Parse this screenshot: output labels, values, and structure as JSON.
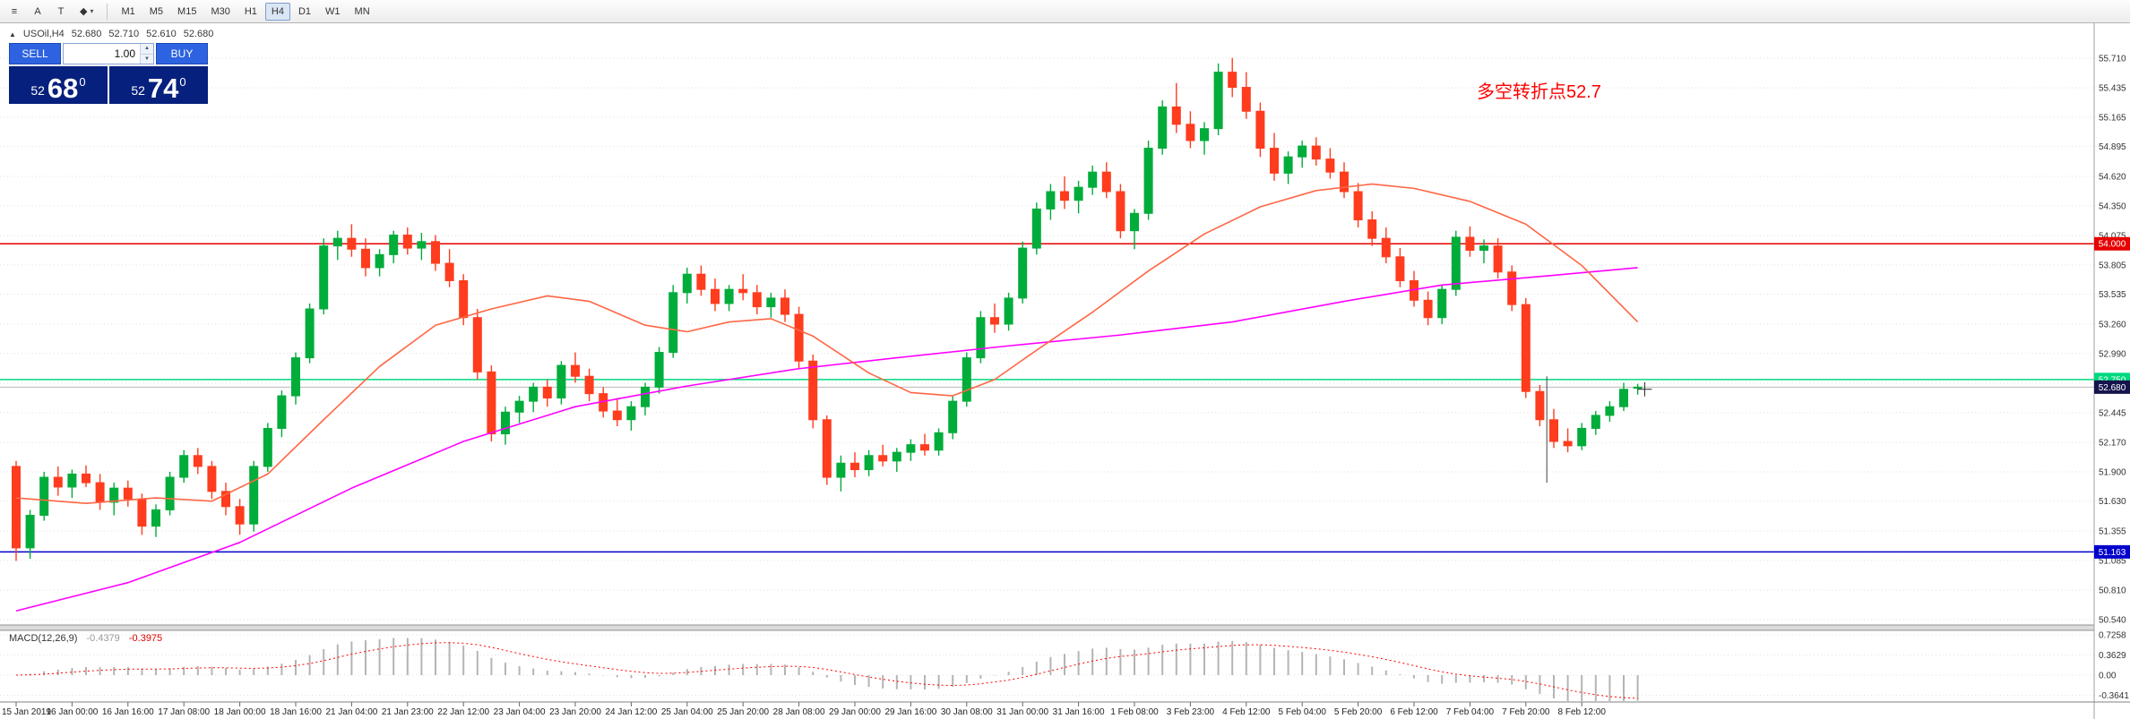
{
  "toolbar": {
    "tools": [
      {
        "name": "menu",
        "glyph": "≡"
      },
      {
        "name": "cursor",
        "glyph": "A"
      },
      {
        "name": "text",
        "glyph": "T"
      },
      {
        "name": "shapes",
        "glyph": "◆"
      },
      {
        "name": "shapes-caret",
        "glyph": "▾"
      }
    ],
    "timeframes": [
      "M1",
      "M5",
      "M15",
      "M30",
      "H1",
      "H4",
      "D1",
      "W1",
      "MN"
    ],
    "active_timeframe": "H4"
  },
  "chart_header": {
    "symbol_icon": "▲",
    "symbol": "USOil,H4",
    "open": "52.680",
    "high": "52.710",
    "low": "52.610",
    "close": "52.680"
  },
  "trade_panel": {
    "sell_label": "SELL",
    "buy_label": "BUY",
    "volume": "1.00",
    "spinner_up": "▲",
    "spinner_down": "▼",
    "sell_big": "52",
    "sell_pips": "68",
    "sell_sup": "0",
    "buy_big": "52",
    "buy_pips": "74",
    "buy_sup": "0"
  },
  "annotation": {
    "text": "多空转折点52.7"
  },
  "indicator_label": {
    "name": "MACD(12,26,9)",
    "main_value": "-0.4379",
    "signal_value": "-0.3975"
  },
  "colors": {
    "bull": "#00ac3a",
    "bear": "#ff3c1e",
    "grid": "#e0e0e0",
    "axis_text": "#333333",
    "current_price_label_bg": "#15154d",
    "buy_sell_button": "#2d63e0",
    "price_box_bg": "#06207d",
    "annotation_red": "#ff0000"
  },
  "chart_data": {
    "type": "candlestick",
    "title": "USOil H4 candlestick chart with MACD(12,26,9) subwindow",
    "y_axis_labels": [
      "55.710",
      "55.435",
      "55.165",
      "54.895",
      "54.620",
      "54.350",
      "54.075",
      "53.805",
      "53.535",
      "53.260",
      "52.990",
      "52.715",
      "52.445",
      "52.170",
      "51.900",
      "51.630",
      "51.355",
      "51.085",
      "50.810",
      "50.540"
    ],
    "x_axis_labels": [
      "15 Jan 2019",
      "16 Jan 00:00",
      "16 Jan 16:00",
      "17 Jan 08:00",
      "18 Jan 00:00",
      "18 Jan 16:00",
      "21 Jan 04:00",
      "21 Jan 23:00",
      "22 Jan 12:00",
      "23 Jan 04:00",
      "23 Jan 20:00",
      "24 Jan 12:00",
      "25 Jan 04:00",
      "25 Jan 20:00",
      "28 Jan 08:00",
      "29 Jan 00:00",
      "29 Jan 16:00",
      "30 Jan 08:00",
      "31 Jan 00:00",
      "31 Jan 16:00",
      "1 Feb 08:00",
      "3 Feb 23:00",
      "4 Feb 12:00",
      "5 Feb 04:00",
      "5 Feb 20:00",
      "6 Feb 12:00",
      "7 Feb 04:00",
      "7 Feb 20:00",
      "8 Feb 12:00"
    ],
    "bars_per_x_label": 4,
    "ylim_pane": [
      50.49,
      56.03
    ],
    "candles": [
      [
        51.95,
        52.0,
        51.08,
        51.2
      ],
      [
        51.2,
        51.55,
        51.1,
        51.5
      ],
      [
        51.5,
        51.9,
        51.45,
        51.85
      ],
      [
        51.85,
        51.95,
        51.68,
        51.76
      ],
      [
        51.76,
        51.92,
        51.66,
        51.88
      ],
      [
        51.88,
        51.96,
        51.76,
        51.8
      ],
      [
        51.8,
        51.88,
        51.55,
        51.62
      ],
      [
        51.62,
        51.8,
        51.5,
        51.75
      ],
      [
        51.75,
        51.82,
        51.58,
        51.65
      ],
      [
        51.65,
        51.7,
        51.32,
        51.4
      ],
      [
        51.4,
        51.6,
        51.3,
        51.55
      ],
      [
        51.55,
        51.9,
        51.5,
        51.85
      ],
      [
        51.85,
        52.1,
        51.8,
        52.05
      ],
      [
        52.05,
        52.12,
        51.88,
        51.95
      ],
      [
        51.95,
        52.0,
        51.65,
        51.72
      ],
      [
        51.72,
        51.8,
        51.5,
        51.58
      ],
      [
        51.58,
        51.65,
        51.32,
        51.42
      ],
      [
        51.42,
        52.0,
        51.35,
        51.95
      ],
      [
        51.95,
        52.35,
        51.9,
        52.3
      ],
      [
        52.3,
        52.65,
        52.22,
        52.6
      ],
      [
        52.6,
        53.0,
        52.52,
        52.95
      ],
      [
        52.95,
        53.45,
        52.9,
        53.4
      ],
      [
        53.4,
        54.05,
        53.35,
        53.98
      ],
      [
        53.98,
        54.12,
        53.85,
        54.05
      ],
      [
        54.05,
        54.18,
        53.88,
        53.95
      ],
      [
        53.95,
        54.05,
        53.7,
        53.78
      ],
      [
        53.78,
        53.95,
        53.7,
        53.9
      ],
      [
        53.9,
        54.12,
        53.82,
        54.08
      ],
      [
        54.08,
        54.15,
        53.9,
        53.96
      ],
      [
        53.96,
        54.1,
        53.85,
        54.02
      ],
      [
        54.02,
        54.08,
        53.75,
        53.82
      ],
      [
        53.82,
        53.95,
        53.6,
        53.66
      ],
      [
        53.66,
        53.72,
        53.25,
        53.32
      ],
      [
        53.32,
        53.4,
        52.75,
        52.82
      ],
      [
        52.82,
        52.88,
        52.18,
        52.25
      ],
      [
        52.25,
        52.5,
        52.15,
        52.45
      ],
      [
        52.45,
        52.6,
        52.35,
        52.55
      ],
      [
        52.55,
        52.72,
        52.45,
        52.68
      ],
      [
        52.68,
        52.75,
        52.5,
        52.58
      ],
      [
        52.58,
        52.92,
        52.52,
        52.88
      ],
      [
        52.88,
        53.0,
        52.72,
        52.78
      ],
      [
        52.78,
        52.85,
        52.55,
        52.62
      ],
      [
        52.62,
        52.68,
        52.4,
        52.46
      ],
      [
        52.46,
        52.58,
        52.32,
        52.38
      ],
      [
        52.38,
        52.55,
        52.28,
        52.5
      ],
      [
        52.5,
        52.72,
        52.42,
        52.68
      ],
      [
        52.68,
        53.05,
        52.62,
        53.0
      ],
      [
        53.0,
        53.62,
        52.95,
        53.55
      ],
      [
        53.55,
        53.78,
        53.45,
        53.72
      ],
      [
        53.72,
        53.8,
        53.52,
        53.58
      ],
      [
        53.58,
        53.68,
        53.38,
        53.45
      ],
      [
        53.45,
        53.62,
        53.38,
        53.58
      ],
      [
        53.58,
        53.72,
        53.48,
        53.55
      ],
      [
        53.55,
        53.62,
        53.35,
        53.42
      ],
      [
        53.42,
        53.55,
        53.32,
        53.5
      ],
      [
        53.5,
        53.58,
        53.28,
        53.35
      ],
      [
        53.35,
        53.42,
        52.85,
        52.92
      ],
      [
        52.92,
        52.98,
        52.3,
        52.38
      ],
      [
        52.38,
        52.42,
        51.78,
        51.85
      ],
      [
        51.85,
        52.05,
        51.72,
        51.98
      ],
      [
        51.98,
        52.08,
        51.85,
        51.92
      ],
      [
        51.92,
        52.1,
        51.86,
        52.05
      ],
      [
        52.05,
        52.15,
        51.95,
        52.0
      ],
      [
        52.0,
        52.12,
        51.9,
        52.08
      ],
      [
        52.08,
        52.2,
        52.0,
        52.15
      ],
      [
        52.15,
        52.25,
        52.05,
        52.1
      ],
      [
        52.1,
        52.3,
        52.05,
        52.26
      ],
      [
        52.26,
        52.6,
        52.2,
        52.55
      ],
      [
        52.55,
        53.0,
        52.5,
        52.95
      ],
      [
        52.95,
        53.38,
        52.9,
        53.32
      ],
      [
        53.32,
        53.45,
        53.18,
        53.26
      ],
      [
        53.26,
        53.55,
        53.2,
        53.5
      ],
      [
        53.5,
        54.02,
        53.45,
        53.96
      ],
      [
        53.96,
        54.38,
        53.9,
        54.32
      ],
      [
        54.32,
        54.55,
        54.22,
        54.48
      ],
      [
        54.48,
        54.62,
        54.32,
        54.4
      ],
      [
        54.4,
        54.58,
        54.28,
        54.52
      ],
      [
        54.52,
        54.72,
        54.45,
        54.66
      ],
      [
        54.66,
        54.75,
        54.42,
        54.48
      ],
      [
        54.48,
        54.55,
        54.05,
        54.12
      ],
      [
        54.12,
        54.32,
        53.95,
        54.28
      ],
      [
        54.28,
        54.95,
        54.22,
        54.88
      ],
      [
        54.88,
        55.32,
        54.82,
        55.26
      ],
      [
        55.26,
        55.48,
        55.02,
        55.1
      ],
      [
        55.1,
        55.22,
        54.88,
        54.95
      ],
      [
        54.95,
        55.12,
        54.82,
        55.06
      ],
      [
        55.06,
        55.66,
        55.0,
        55.58
      ],
      [
        55.58,
        55.71,
        55.35,
        55.44
      ],
      [
        55.44,
        55.58,
        55.15,
        55.22
      ],
      [
        55.22,
        55.3,
        54.8,
        54.88
      ],
      [
        54.88,
        55.02,
        54.58,
        54.65
      ],
      [
        54.65,
        54.85,
        54.55,
        54.8
      ],
      [
        54.8,
        54.95,
        54.7,
        54.9
      ],
      [
        54.9,
        54.98,
        54.72,
        54.78
      ],
      [
        54.78,
        54.88,
        54.6,
        54.66
      ],
      [
        54.66,
        54.75,
        54.42,
        54.48
      ],
      [
        54.48,
        54.56,
        54.15,
        54.22
      ],
      [
        54.22,
        54.3,
        53.98,
        54.05
      ],
      [
        54.05,
        54.15,
        53.82,
        53.88
      ],
      [
        53.88,
        53.96,
        53.6,
        53.66
      ],
      [
        53.66,
        53.75,
        53.42,
        53.48
      ],
      [
        53.48,
        53.56,
        53.25,
        53.32
      ],
      [
        53.32,
        53.62,
        53.26,
        53.58
      ],
      [
        53.58,
        54.12,
        53.52,
        54.06
      ],
      [
        54.06,
        54.16,
        53.88,
        53.94
      ],
      [
        53.94,
        54.04,
        53.82,
        53.98
      ],
      [
        53.98,
        54.05,
        53.68,
        53.74
      ],
      [
        53.74,
        53.8,
        53.38,
        53.44
      ],
      [
        53.44,
        53.5,
        52.58,
        52.64
      ],
      [
        52.64,
        52.7,
        52.32,
        52.38
      ],
      [
        52.38,
        52.48,
        52.12,
        52.18
      ],
      [
        52.18,
        52.3,
        52.08,
        52.14
      ],
      [
        52.14,
        52.35,
        52.1,
        52.3
      ],
      [
        52.3,
        52.46,
        52.24,
        52.42
      ],
      [
        52.42,
        52.55,
        52.36,
        52.5
      ],
      [
        52.5,
        52.72,
        52.46,
        52.66
      ],
      [
        52.68,
        52.71,
        52.61,
        52.68
      ]
    ],
    "horizontal_lines": [
      {
        "price": 54.0,
        "color": "#e60000",
        "label": "54.000"
      },
      {
        "price": 52.75,
        "color": "#00d97e",
        "label": "52.750"
      },
      {
        "price": 51.163,
        "color": "#0000cc",
        "label": "51.163"
      }
    ],
    "current_price": {
      "value": 52.68,
      "label": "52.680"
    },
    "ma_fast": {
      "name": "fast moving average",
      "color": "#ff6644",
      "points": [
        [
          0,
          51.66
        ],
        [
          5,
          51.61
        ],
        [
          10,
          51.66
        ],
        [
          14,
          51.63
        ],
        [
          18,
          51.88
        ],
        [
          22,
          52.38
        ],
        [
          26,
          52.87
        ],
        [
          30,
          53.25
        ],
        [
          34,
          53.4
        ],
        [
          38,
          53.52
        ],
        [
          41,
          53.47
        ],
        [
          45,
          53.25
        ],
        [
          48,
          53.19
        ],
        [
          51,
          53.28
        ],
        [
          54,
          53.31
        ],
        [
          57,
          53.15
        ],
        [
          61,
          52.81
        ],
        [
          64,
          52.63
        ],
        [
          67,
          52.6
        ],
        [
          70,
          52.75
        ],
        [
          73,
          53.02
        ],
        [
          77,
          53.37
        ],
        [
          81,
          53.75
        ],
        [
          85,
          54.09
        ],
        [
          89,
          54.34
        ],
        [
          93,
          54.49
        ],
        [
          97,
          54.55
        ],
        [
          100,
          54.51
        ],
        [
          104,
          54.39
        ],
        [
          108,
          54.18
        ],
        [
          112,
          53.8
        ],
        [
          116,
          53.28
        ]
      ]
    },
    "ma_slow": {
      "name": "slow moving average",
      "color": "#ff00ff",
      "points": [
        [
          0,
          50.62
        ],
        [
          8,
          50.88
        ],
        [
          16,
          51.25
        ],
        [
          24,
          51.75
        ],
        [
          32,
          52.18
        ],
        [
          40,
          52.5
        ],
        [
          48,
          52.69
        ],
        [
          56,
          52.85
        ],
        [
          63,
          52.95
        ],
        [
          71,
          53.06
        ],
        [
          79,
          53.16
        ],
        [
          87,
          53.28
        ],
        [
          95,
          53.47
        ],
        [
          102,
          53.62
        ],
        [
          110,
          53.71
        ],
        [
          116,
          53.78
        ]
      ]
    },
    "macd": {
      "fast": 12,
      "slow": 26,
      "signal": 9,
      "histogram_color": "#b4b4b4",
      "signal_color": "#ff0000",
      "axis_labels": [
        "0.7258",
        "0.3629",
        "0.00",
        "-0.3641"
      ],
      "axis_values": [
        0.7258,
        0.3629,
        0,
        -0.3641
      ]
    },
    "crosshair": {
      "vline_index": 109.5,
      "vline_price_from": 52.78,
      "vline_price_to": 51.8,
      "cross_index": 116.5,
      "cross_price": 52.66
    }
  }
}
